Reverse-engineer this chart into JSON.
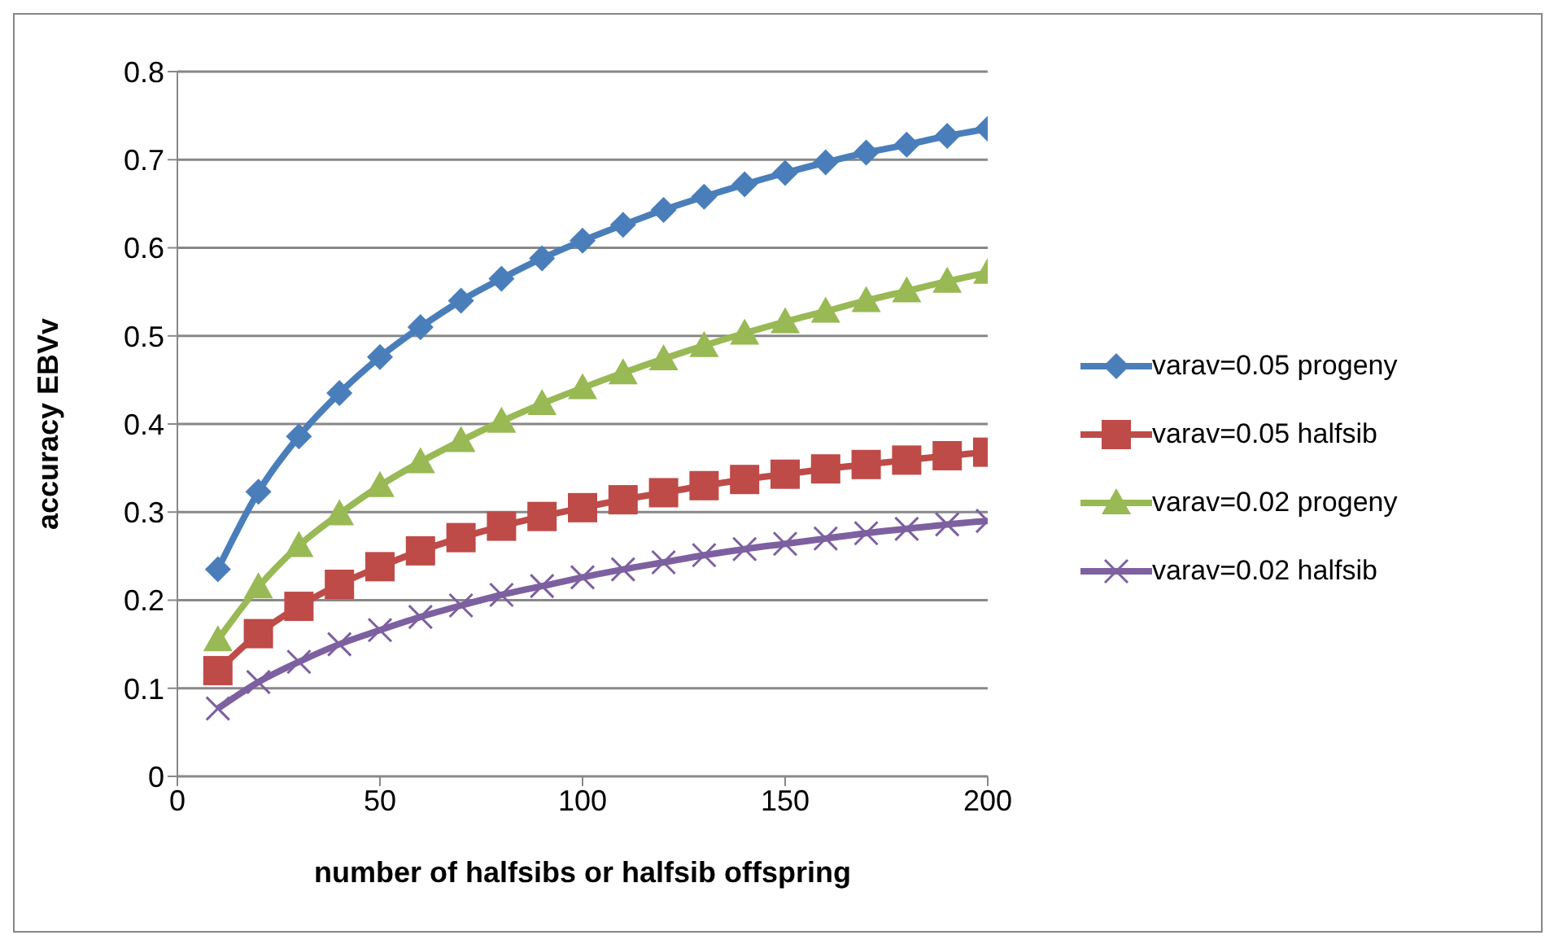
{
  "chart_data": {
    "type": "line",
    "xlabel": "number of halfsibs or halfsib offspring",
    "ylabel": "accuracy EBVv",
    "x": [
      10,
      20,
      30,
      40,
      50,
      60,
      70,
      80,
      90,
      100,
      110,
      120,
      130,
      140,
      150,
      160,
      170,
      180,
      190,
      200
    ],
    "xlim": [
      0,
      200
    ],
    "xticks": [
      0,
      50,
      100,
      150,
      200
    ],
    "ylim": [
      0,
      0.8
    ],
    "yticks": [
      0,
      0.1,
      0.2,
      0.3,
      0.4,
      0.5,
      0.6,
      0.7,
      0.8
    ],
    "grid": "y",
    "legend": "right",
    "series": [
      {
        "name": "varav=0.05 progeny",
        "color": "#4a7ebb",
        "marker": "diamond",
        "values": [
          0.235,
          0.323,
          0.386,
          0.435,
          0.476,
          0.51,
          0.54,
          0.565,
          0.588,
          0.608,
          0.626,
          0.643,
          0.658,
          0.672,
          0.685,
          0.697,
          0.708,
          0.717,
          0.727,
          0.735
        ]
      },
      {
        "name": "varav=0.05 halfsib",
        "color": "#be4b48",
        "marker": "square",
        "values": [
          0.12,
          0.162,
          0.193,
          0.218,
          0.238,
          0.256,
          0.271,
          0.284,
          0.295,
          0.305,
          0.314,
          0.322,
          0.33,
          0.337,
          0.343,
          0.349,
          0.354,
          0.359,
          0.364,
          0.368
        ]
      },
      {
        "name": "varav=0.02 progeny",
        "color": "#98b954",
        "marker": "triangle",
        "values": [
          0.155,
          0.215,
          0.262,
          0.298,
          0.33,
          0.357,
          0.381,
          0.403,
          0.423,
          0.441,
          0.458,
          0.474,
          0.489,
          0.503,
          0.516,
          0.528,
          0.54,
          0.551,
          0.562,
          0.572
        ]
      },
      {
        "name": "varav=0.02 halfsib",
        "color": "#7d60a0",
        "marker": "cross",
        "values": [
          0.077,
          0.107,
          0.13,
          0.15,
          0.166,
          0.181,
          0.194,
          0.206,
          0.216,
          0.226,
          0.235,
          0.243,
          0.251,
          0.258,
          0.264,
          0.27,
          0.276,
          0.281,
          0.286,
          0.29
        ]
      }
    ]
  }
}
